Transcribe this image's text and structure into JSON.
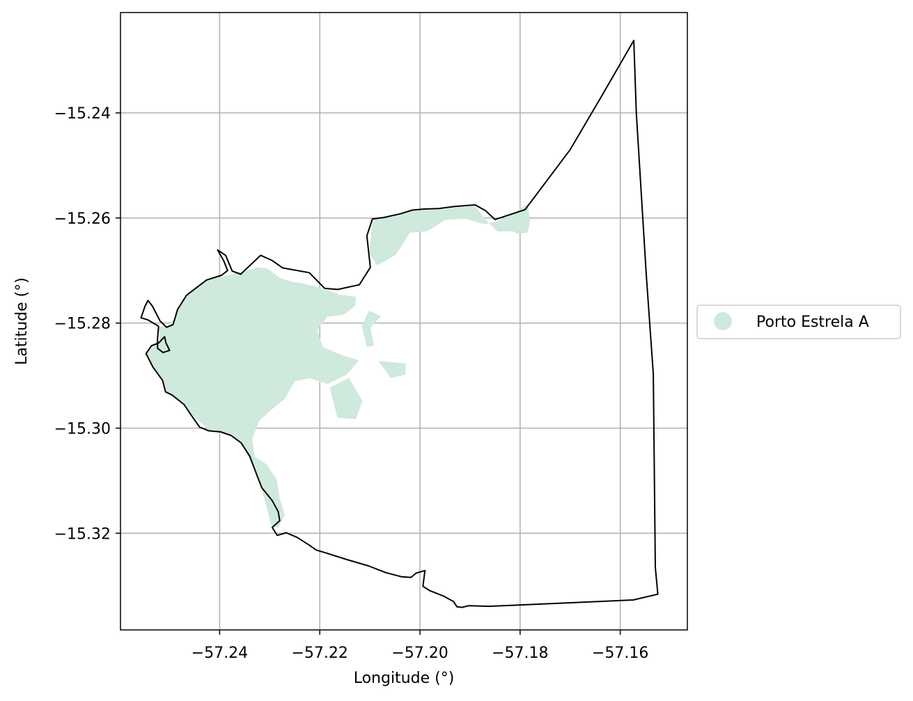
{
  "chart_data": {
    "type": "map",
    "xlabel": "Longitude (°)",
    "ylabel": "Latitude (°)",
    "xlim": [
      -57.2598,
      -57.1466
    ],
    "ylim": [
      -15.3384,
      -15.2209
    ],
    "xticks": [
      -57.24,
      -57.22,
      -57.2,
      -57.18,
      -57.16
    ],
    "xtick_labels": [
      "−57.24",
      "−57.22",
      "−57.20",
      "−57.18",
      "−57.16"
    ],
    "yticks": [
      -15.24,
      -15.26,
      -15.28,
      -15.3,
      -15.32
    ],
    "ytick_labels": [
      "−15.24",
      "−15.26",
      "−15.28",
      "−15.30",
      "−15.32"
    ],
    "grid": true,
    "legend": {
      "placement": "center-right outside",
      "entries": [
        {
          "label": "Porto Estrela A",
          "color": "#cfe9dc"
        }
      ]
    },
    "colors": {
      "fill": "#cfe9dc",
      "boundary": "#000000",
      "grid": "#b0b0b0"
    },
    "boundary": [
      [
        -57.2404,
        -15.2661
      ],
      [
        -57.2392,
        -15.2681
      ],
      [
        -57.2384,
        -15.27
      ],
      [
        -57.2396,
        -15.2709
      ],
      [
        -57.2426,
        -15.2718
      ],
      [
        -57.2466,
        -15.2747
      ],
      [
        -57.2484,
        -15.2774
      ],
      [
        -57.2493,
        -15.2803
      ],
      [
        -57.2506,
        -15.2808
      ],
      [
        -57.2519,
        -15.2796
      ],
      [
        -57.2534,
        -15.2768
      ],
      [
        -57.2543,
        -15.2757
      ],
      [
        -57.2549,
        -15.2768
      ],
      [
        -57.2557,
        -15.279
      ],
      [
        -57.2543,
        -15.2794
      ],
      [
        -57.2522,
        -15.2806
      ],
      [
        -57.2524,
        -15.283
      ],
      [
        -57.2524,
        -15.2848
      ],
      [
        -57.2513,
        -15.2856
      ],
      [
        -57.25,
        -15.2852
      ],
      [
        -57.2507,
        -15.2838
      ],
      [
        -57.251,
        -15.2826
      ],
      [
        -57.2522,
        -15.2838
      ],
      [
        -57.2536,
        -15.2843
      ],
      [
        -57.2547,
        -15.2858
      ],
      [
        -57.2533,
        -15.2884
      ],
      [
        -57.2514,
        -15.2909
      ],
      [
        -57.2508,
        -15.2931
      ],
      [
        -57.2495,
        -15.2937
      ],
      [
        -57.2471,
        -15.2955
      ],
      [
        -57.2457,
        -15.2975
      ],
      [
        -57.244,
        -15.2998
      ],
      [
        -57.2422,
        -15.3005
      ],
      [
        -57.2398,
        -15.3007
      ],
      [
        -57.2377,
        -15.3014
      ],
      [
        -57.2357,
        -15.3028
      ],
      [
        -57.234,
        -15.3053
      ],
      [
        -57.2327,
        -15.3086
      ],
      [
        -57.2316,
        -15.3113
      ],
      [
        -57.2295,
        -15.3138
      ],
      [
        -57.2283,
        -15.3159
      ],
      [
        -57.228,
        -15.3176
      ],
      [
        -57.2295,
        -15.3189
      ],
      [
        -57.2285,
        -15.3204
      ],
      [
        -57.2267,
        -15.3199
      ],
      [
        -57.2245,
        -15.3208
      ],
      [
        -57.2222,
        -15.3222
      ],
      [
        -57.2207,
        -15.3232
      ],
      [
        -57.2189,
        -15.3237
      ],
      [
        -57.2146,
        -15.325
      ],
      [
        -57.2103,
        -15.3262
      ],
      [
        -57.2068,
        -15.3275
      ],
      [
        -57.2036,
        -15.3283
      ],
      [
        -57.2018,
        -15.3284
      ],
      [
        -57.2008,
        -15.3276
      ],
      [
        -57.199,
        -15.3271
      ],
      [
        -57.1994,
        -15.3301
      ],
      [
        -57.1981,
        -15.3309
      ],
      [
        -57.1952,
        -15.332
      ],
      [
        -57.1933,
        -15.333
      ],
      [
        -57.1926,
        -15.334
      ],
      [
        -57.1916,
        -15.3341
      ],
      [
        -57.1903,
        -15.3338
      ],
      [
        -57.1862,
        -15.3339
      ],
      [
        -57.1766,
        -15.3335
      ],
      [
        -57.1574,
        -15.3327
      ],
      [
        -57.1525,
        -15.3316
      ],
      [
        -57.153,
        -15.3265
      ],
      [
        -57.1534,
        -15.2897
      ],
      [
        -57.1548,
        -15.2708
      ],
      [
        -57.1568,
        -15.24
      ],
      [
        -57.1573,
        -15.2262
      ],
      [
        -57.1636,
        -15.2366
      ],
      [
        -57.17,
        -15.247
      ],
      [
        -57.179,
        -15.2584
      ],
      [
        -57.185,
        -15.2603
      ],
      [
        -57.1869,
        -15.2586
      ],
      [
        -57.189,
        -15.2575
      ],
      [
        -57.193,
        -15.2578
      ],
      [
        -57.1962,
        -15.2582
      ],
      [
        -57.1992,
        -15.2583
      ],
      [
        -57.2015,
        -15.2585
      ],
      [
        -57.2039,
        -15.2592
      ],
      [
        -57.2072,
        -15.2599
      ],
      [
        -57.2095,
        -15.2602
      ],
      [
        -57.2106,
        -15.2634
      ],
      [
        -57.2099,
        -15.2694
      ],
      [
        -57.2121,
        -15.2727
      ],
      [
        -57.2164,
        -15.2736
      ],
      [
        -57.219,
        -15.2734
      ],
      [
        -57.2221,
        -15.2704
      ],
      [
        -57.2274,
        -15.2695
      ],
      [
        -57.2295,
        -15.2681
      ],
      [
        -57.2318,
        -15.2671
      ],
      [
        -57.2358,
        -15.2707
      ],
      [
        -57.2375,
        -15.2701
      ],
      [
        -57.2388,
        -15.2671
      ],
      [
        -57.2404,
        -15.2661
      ]
    ],
    "fill_regions": [
      [
        [
          -57.2394,
          -15.2712
        ],
        [
          -57.2325,
          -15.2694
        ],
        [
          -57.2305,
          -15.2696
        ],
        [
          -57.2278,
          -15.2715
        ],
        [
          -57.2254,
          -15.2722
        ],
        [
          -57.2235,
          -15.2724
        ],
        [
          -57.2211,
          -15.273
        ],
        [
          -57.2192,
          -15.2735
        ],
        [
          -57.216,
          -15.2746
        ],
        [
          -57.2128,
          -15.275
        ],
        [
          -57.2129,
          -15.2767
        ],
        [
          -57.2152,
          -15.2784
        ],
        [
          -57.2185,
          -15.2788
        ],
        [
          -57.2205,
          -15.2813
        ],
        [
          -57.2194,
          -15.2846
        ],
        [
          -57.2156,
          -15.2861
        ],
        [
          -57.2122,
          -15.2871
        ],
        [
          -57.2146,
          -15.2898
        ],
        [
          -57.2185,
          -15.2916
        ],
        [
          -57.222,
          -15.2905
        ],
        [
          -57.225,
          -15.2911
        ],
        [
          -57.227,
          -15.2944
        ],
        [
          -57.2294,
          -15.2963
        ],
        [
          -57.232,
          -15.2985
        ],
        [
          -57.2335,
          -15.302
        ],
        [
          -57.233,
          -15.3054
        ],
        [
          -57.2306,
          -15.3069
        ],
        [
          -57.2286,
          -15.3098
        ],
        [
          -57.228,
          -15.3134
        ],
        [
          -57.227,
          -15.3165
        ],
        [
          -57.2283,
          -15.3189
        ],
        [
          -57.2296,
          -15.3188
        ],
        [
          -57.2317,
          -15.3113
        ],
        [
          -57.2328,
          -15.3086
        ],
        [
          -57.2342,
          -15.3054
        ],
        [
          -57.2359,
          -15.3028
        ],
        [
          -57.238,
          -15.3014
        ],
        [
          -57.242,
          -15.3005
        ],
        [
          -57.2456,
          -15.2974
        ],
        [
          -57.2475,
          -15.2952
        ],
        [
          -57.2507,
          -15.2932
        ],
        [
          -57.2512,
          -15.2908
        ],
        [
          -57.2532,
          -15.2884
        ],
        [
          -57.2546,
          -15.2858
        ],
        [
          -57.2536,
          -15.2842
        ],
        [
          -57.252,
          -15.2834
        ],
        [
          -57.2522,
          -15.2806
        ],
        [
          -57.2505,
          -15.2806
        ],
        [
          -57.249,
          -15.279
        ],
        [
          -57.248,
          -15.2766
        ],
        [
          -57.246,
          -15.2742
        ],
        [
          -57.242,
          -15.2716
        ]
      ],
      [
        [
          -57.2095,
          -15.2604
        ],
        [
          -57.2072,
          -15.2601
        ],
        [
          -57.2039,
          -15.2594
        ],
        [
          -57.2015,
          -15.2587
        ],
        [
          -57.1992,
          -15.2585
        ],
        [
          -57.1962,
          -15.2584
        ],
        [
          -57.193,
          -15.258
        ],
        [
          -57.189,
          -15.2577
        ],
        [
          -57.1872,
          -15.26
        ],
        [
          -57.1845,
          -15.2626
        ],
        [
          -57.1815,
          -15.2625
        ],
        [
          -57.1805,
          -15.263
        ],
        [
          -57.1785,
          -15.2628
        ],
        [
          -57.178,
          -15.2606
        ],
        [
          -57.1785,
          -15.2573
        ],
        [
          -57.181,
          -15.259
        ],
        [
          -57.184,
          -15.2604
        ],
        [
          -57.187,
          -15.2612
        ],
        [
          -57.191,
          -15.2601
        ],
        [
          -57.195,
          -15.2604
        ],
        [
          -57.1985,
          -15.2625
        ],
        [
          -57.202,
          -15.2628
        ],
        [
          -57.2048,
          -15.267
        ],
        [
          -57.2086,
          -15.269
        ],
        [
          -57.2101,
          -15.2667
        ]
      ],
      [
        [
          -57.2142,
          -15.2904
        ],
        [
          -57.218,
          -15.2923
        ],
        [
          -57.2165,
          -15.298
        ],
        [
          -57.2128,
          -15.2983
        ],
        [
          -57.2115,
          -15.2948
        ]
      ],
      [
        [
          -57.2028,
          -15.2877
        ],
        [
          -57.2083,
          -15.2872
        ],
        [
          -57.2058,
          -15.2905
        ],
        [
          -57.2029,
          -15.2898
        ]
      ],
      [
        [
          -57.2078,
          -15.2787
        ],
        [
          -57.2099,
          -15.2809
        ],
        [
          -57.2092,
          -15.2843
        ],
        [
          -57.2106,
          -15.2845
        ],
        [
          -57.2116,
          -15.2806
        ],
        [
          -57.2102,
          -15.2776
        ]
      ]
    ]
  }
}
